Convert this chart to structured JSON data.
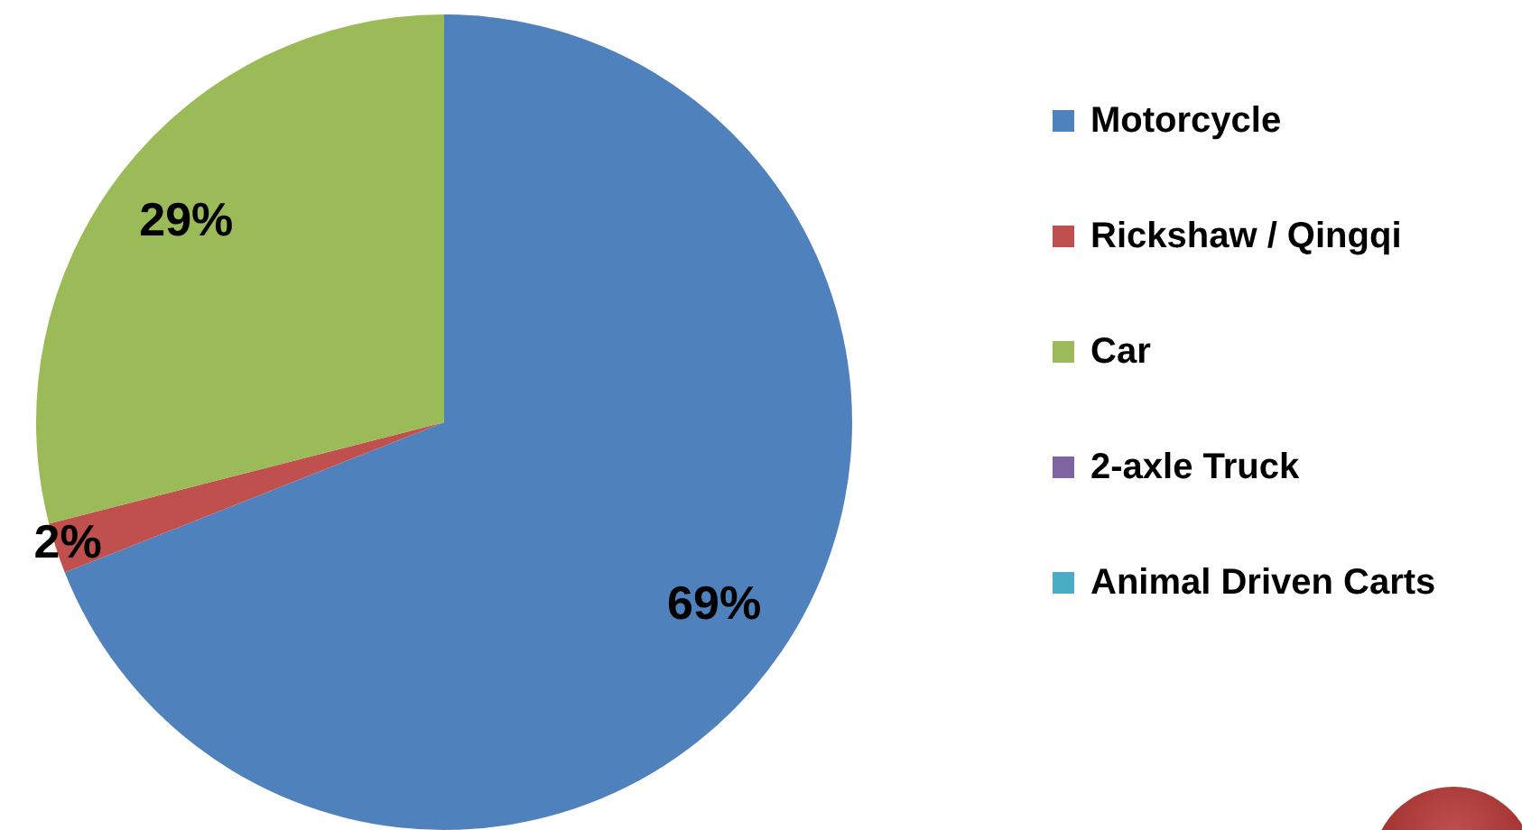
{
  "chart_data": {
    "type": "pie",
    "categories": [
      "Motorcycle",
      "Rickshaw / Qingqi",
      "Car",
      "2-axle Truck",
      "Animal Driven Carts"
    ],
    "values": [
      69,
      2,
      29,
      0,
      0
    ],
    "colors": [
      "#4f81bd",
      "#c0504d",
      "#9bbb59",
      "#8064a2",
      "#4bacc6"
    ],
    "value_labels": [
      "69%",
      "2%",
      "29%",
      null,
      null
    ],
    "legend": "right"
  }
}
